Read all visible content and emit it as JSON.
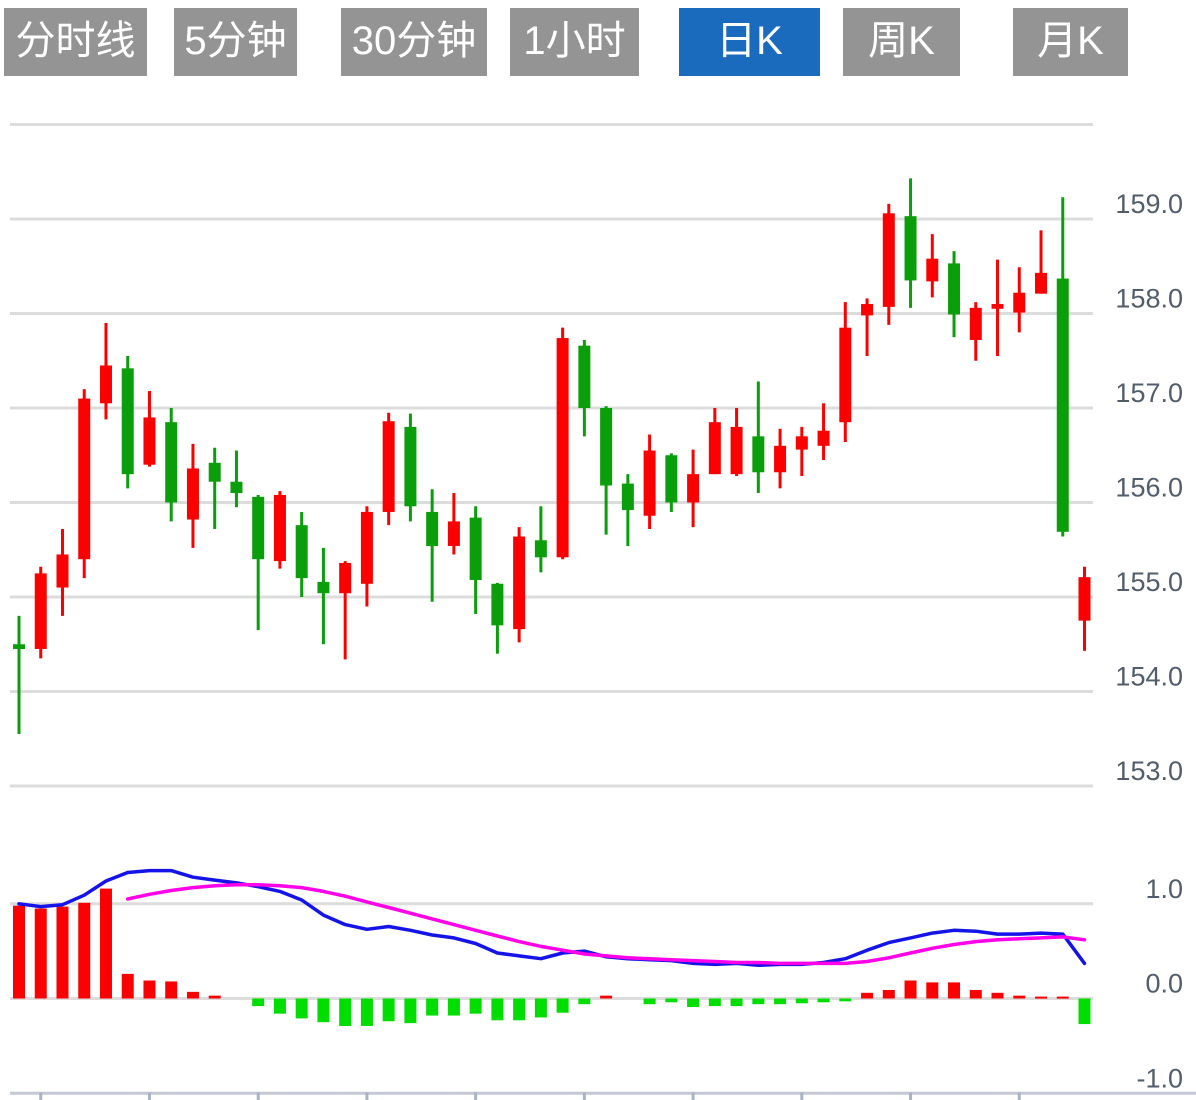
{
  "toolbar": {
    "active_color": "#1a6bbd",
    "inactive_color": "#949494",
    "text_color": "#ffffff",
    "buttons": [
      {
        "id": "tab-timeline",
        "label": "分时线",
        "active": false
      },
      {
        "id": "tab-5min",
        "label": "5分钟",
        "active": false
      },
      {
        "id": "tab-30min",
        "label": "30分钟",
        "active": false
      },
      {
        "id": "tab-1hour",
        "label": "1小时",
        "active": false
      },
      {
        "id": "tab-daily-k",
        "label": "日K",
        "active": true
      },
      {
        "id": "tab-weekly-k",
        "label": "周K",
        "active": false
      },
      {
        "id": "tab-monthly-k",
        "label": "月K",
        "active": false
      }
    ]
  },
  "chart_data": [
    {
      "type": "candlestick",
      "title": "",
      "panel": "price",
      "up_color": "#fb0000",
      "down_color": "#0b9e0b",
      "grid_color": "#dcdcdc",
      "label_color": "#515d6b",
      "ylim": [
        152.6,
        160.05
      ],
      "y_axis": {
        "gridline_prices": [
          160,
          159,
          158,
          157,
          156,
          155,
          154,
          153
        ],
        "ticks": [
          {
            "label": "159.0",
            "value": 159
          },
          {
            "label": "158.0",
            "value": 158
          },
          {
            "label": "157.0",
            "value": 157
          },
          {
            "label": "156.0",
            "value": 156
          },
          {
            "label": "155.0",
            "value": 155
          },
          {
            "label": "154.0",
            "value": 154
          },
          {
            "label": "153.0",
            "value": 153
          }
        ]
      },
      "candles_format": [
        "open",
        "close",
        "high",
        "low"
      ],
      "candles": [
        [
          154.5,
          154.45,
          154.8,
          153.55
        ],
        [
          154.45,
          155.25,
          155.32,
          154.35
        ],
        [
          155.1,
          155.45,
          155.72,
          154.8
        ],
        [
          155.4,
          157.1,
          157.2,
          155.2
        ],
        [
          157.05,
          157.45,
          157.9,
          156.88
        ],
        [
          157.42,
          156.3,
          157.55,
          156.15
        ],
        [
          156.4,
          156.9,
          157.18,
          156.38
        ],
        [
          156.85,
          156.0,
          157.0,
          155.8
        ],
        [
          155.82,
          156.36,
          156.62,
          155.52
        ],
        [
          156.42,
          156.22,
          156.58,
          155.72
        ],
        [
          156.22,
          156.1,
          156.55,
          155.95
        ],
        [
          156.06,
          155.4,
          156.08,
          154.65
        ],
        [
          155.38,
          156.08,
          156.12,
          155.3
        ],
        [
          155.76,
          155.2,
          155.9,
          155.0
        ],
        [
          155.16,
          155.04,
          155.52,
          154.5
        ],
        [
          155.04,
          155.36,
          155.38,
          154.34
        ],
        [
          155.14,
          155.9,
          155.96,
          154.9
        ],
        [
          155.9,
          156.86,
          156.95,
          155.76
        ],
        [
          156.8,
          155.96,
          156.94,
          155.8
        ],
        [
          155.9,
          155.54,
          156.14,
          154.95
        ],
        [
          155.54,
          155.8,
          156.1,
          155.45
        ],
        [
          155.84,
          155.18,
          155.96,
          154.82
        ],
        [
          155.14,
          154.7,
          155.15,
          154.4
        ],
        [
          154.66,
          155.64,
          155.74,
          154.52
        ],
        [
          155.6,
          155.42,
          155.96,
          155.26
        ],
        [
          155.42,
          157.74,
          157.85,
          155.4
        ],
        [
          157.66,
          157.0,
          157.72,
          156.7
        ],
        [
          157.0,
          156.18,
          157.02,
          155.66
        ],
        [
          156.2,
          155.92,
          156.3,
          155.54
        ],
        [
          155.86,
          156.55,
          156.72,
          155.72
        ],
        [
          156.5,
          156.0,
          156.52,
          155.9
        ],
        [
          156.0,
          156.3,
          156.56,
          155.74
        ],
        [
          156.3,
          156.85,
          157.0,
          156.3
        ],
        [
          156.3,
          156.8,
          157.0,
          156.28
        ],
        [
          156.7,
          156.32,
          157.28,
          156.1
        ],
        [
          156.32,
          156.6,
          156.78,
          156.15
        ],
        [
          156.56,
          156.7,
          156.8,
          156.28
        ],
        [
          156.6,
          156.76,
          157.05,
          156.45
        ],
        [
          156.85,
          157.85,
          158.12,
          156.64
        ],
        [
          157.98,
          158.1,
          158.16,
          157.55
        ],
        [
          158.07,
          159.06,
          159.16,
          157.88
        ],
        [
          159.03,
          158.35,
          159.43,
          158.06
        ],
        [
          158.34,
          158.58,
          158.84,
          158.17
        ],
        [
          158.53,
          157.99,
          158.66,
          157.75
        ],
        [
          157.72,
          158.06,
          158.12,
          157.5
        ],
        [
          158.05,
          158.1,
          158.57,
          157.55
        ],
        [
          158.01,
          158.22,
          158.49,
          157.8
        ],
        [
          158.21,
          158.43,
          158.88,
          158.21
        ],
        [
          158.37,
          155.69,
          159.23,
          155.64
        ],
        [
          154.75,
          155.21,
          155.32,
          154.43
        ]
      ]
    },
    {
      "type": "macd",
      "panel": "indicator",
      "hist_up_color": "#fb0000",
      "hist_down_color": "#00dd00",
      "dif_color": "#1414e8",
      "dea_color": "#ff00e8",
      "grid_color": "#dcdcdc",
      "axis_line_color": "#c3c8d2",
      "tick_mark_color": "#a9b3c6",
      "label_color": "#515d6b",
      "ylim": [
        -1.1,
        1.45
      ],
      "y_axis": {
        "ticks": [
          {
            "label": "1.0",
            "value": 1
          },
          {
            "label": "0.0",
            "value": 0
          },
          {
            "label": "-1.0",
            "value": -1
          }
        ]
      },
      "histogram": [
        0.98,
        0.95,
        0.97,
        1.01,
        1.16,
        0.26,
        0.19,
        0.18,
        0.07,
        0.03,
        0,
        -0.08,
        -0.16,
        -0.21,
        -0.25,
        -0.29,
        -0.29,
        -0.24,
        -0.26,
        -0.18,
        -0.18,
        -0.16,
        -0.23,
        -0.23,
        -0.2,
        -0.15,
        -0.06,
        0.03,
        0,
        -0.06,
        -0.04,
        -0.09,
        -0.08,
        -0.08,
        -0.06,
        -0.06,
        -0.05,
        -0.04,
        -0.03,
        0.06,
        0.09,
        0.19,
        0.17,
        0.17,
        0.09,
        0.06,
        0.03,
        0.02,
        0.02,
        -0.27
      ],
      "series": [
        {
          "name": "DIF",
          "values": [
            1.0,
            0.97,
            0.99,
            1.09,
            1.24,
            1.33,
            1.35,
            1.35,
            1.28,
            1.25,
            1.22,
            1.18,
            1.13,
            1.04,
            0.88,
            0.78,
            0.73,
            0.76,
            0.72,
            0.67,
            0.64,
            0.58,
            0.48,
            0.45,
            0.42,
            0.48,
            0.5,
            0.44,
            0.42,
            0.41,
            0.4,
            0.37,
            0.36,
            0.37,
            0.35,
            0.36,
            0.36,
            0.38,
            0.42,
            0.51,
            0.59,
            0.64,
            0.69,
            0.72,
            0.71,
            0.68,
            0.68,
            0.69,
            0.68,
            0.37
          ]
        },
        {
          "name": "DEA",
          "values": [
            null,
            null,
            null,
            null,
            null,
            1.05,
            1.1,
            1.14,
            1.17,
            1.19,
            1.2,
            1.2,
            1.19,
            1.17,
            1.13,
            1.08,
            1.02,
            0.96,
            0.9,
            0.84,
            0.78,
            0.72,
            0.66,
            0.6,
            0.55,
            0.51,
            0.47,
            0.45,
            0.43,
            0.42,
            0.41,
            0.4,
            0.39,
            0.38,
            0.38,
            0.37,
            0.37,
            0.37,
            0.37,
            0.39,
            0.43,
            0.48,
            0.53,
            0.57,
            0.6,
            0.62,
            0.63,
            0.64,
            0.65,
            0.62
          ]
        }
      ],
      "x_axis_tick_candle_indices": [
        1,
        6,
        11,
        16,
        21,
        26,
        31,
        36,
        41,
        46
      ]
    }
  ]
}
